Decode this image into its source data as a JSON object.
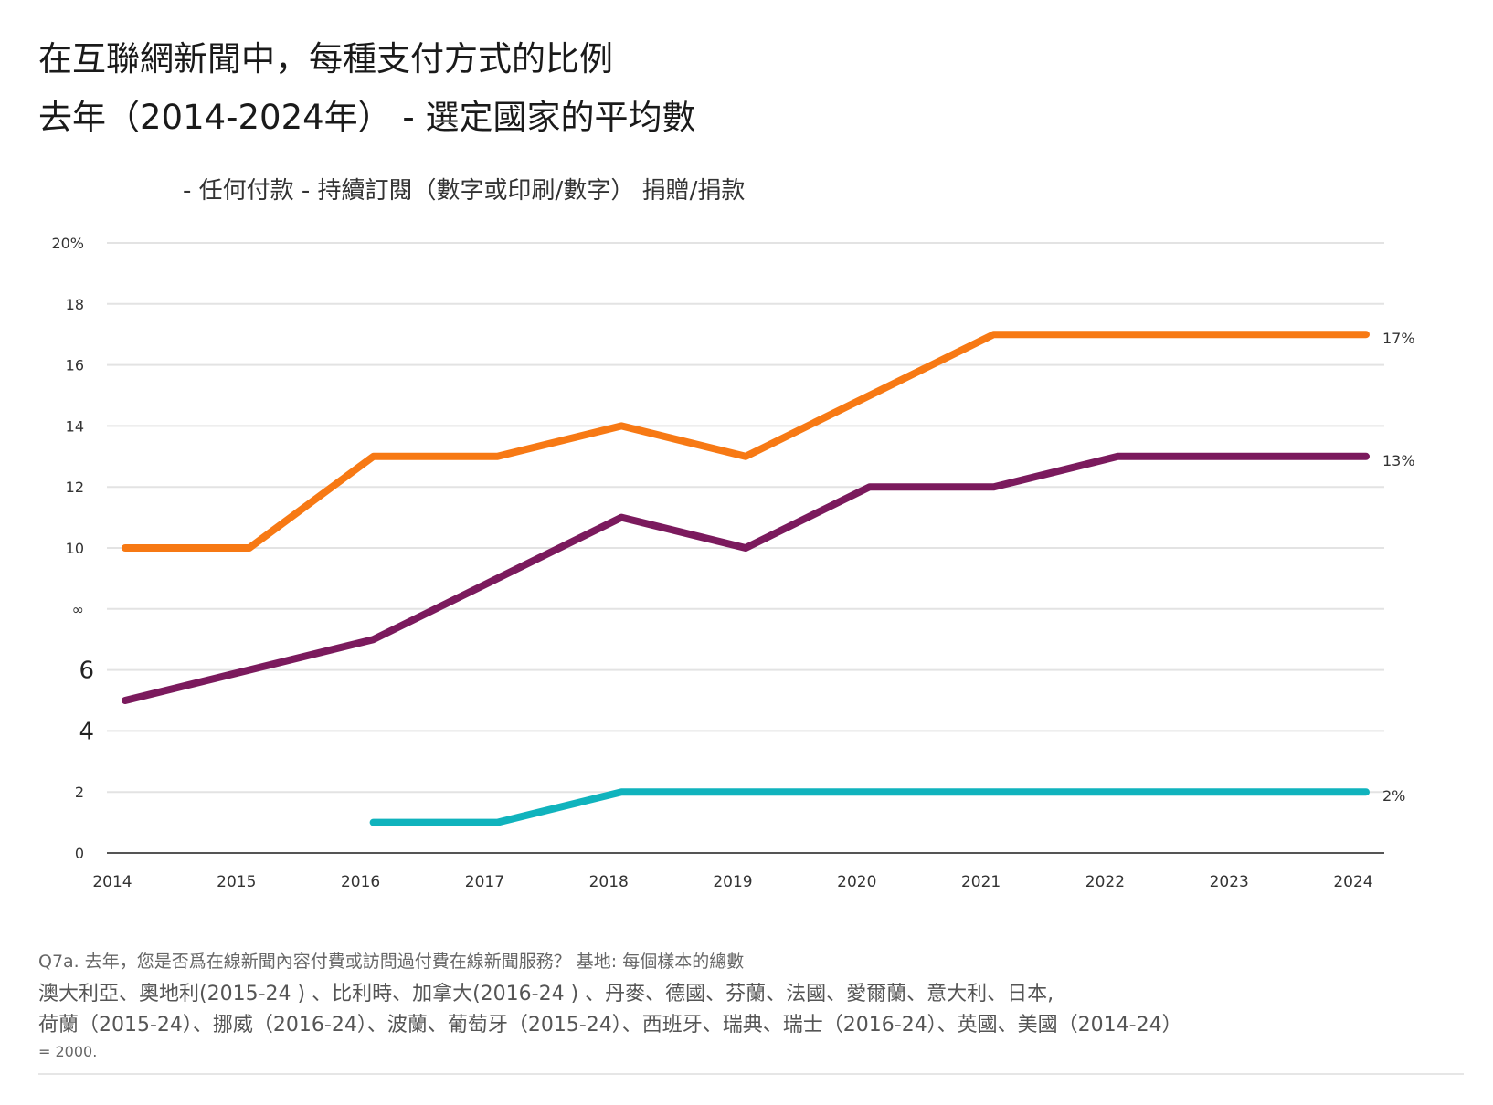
{
  "title": {
    "line1": "在互聯網新聞中，每種支付方式的比例",
    "line2": "去年（2014-2024年） - 選定國家的平均數"
  },
  "legend_text": "- 任何付款 - 持續訂閱（數字或印刷/數字） 捐贈/捐款",
  "colors": {
    "any_payment": "#f77914",
    "subscription": "#7b1a5d",
    "donation": "#10b3bd",
    "grid": "#e3e3e3",
    "axis": "#555555"
  },
  "chart_data": {
    "type": "line",
    "title": "在互聯網新聞中，每種支付方式的比例",
    "subtitle": "去年（2014-2024年） - 選定國家的平均數",
    "x": [
      "2014",
      "2015",
      "2016",
      "2017",
      "2018",
      "2019",
      "2020",
      "2021",
      "2022",
      "2023",
      "2024"
    ],
    "ylim": [
      0,
      20
    ],
    "grid": true,
    "y_ticks": [
      "0",
      "2",
      "4",
      "6",
      "∞",
      "10",
      "12",
      "14",
      "16",
      "18",
      "20%"
    ],
    "series": [
      {
        "name": "任何付款",
        "color": "#f77914",
        "values": [
          10,
          10,
          13,
          13,
          14,
          13,
          15,
          17,
          17,
          17,
          17
        ],
        "end_label": "17%"
      },
      {
        "name": "持續訂閱（數字或印刷/數字）",
        "color": "#7b1a5d",
        "values": [
          5,
          6,
          7,
          9,
          11,
          10,
          12,
          12,
          13,
          13,
          13
        ],
        "end_label": "13%"
      },
      {
        "name": "捐贈/捐款",
        "color": "#10b3bd",
        "values": [
          null,
          null,
          1,
          1,
          2,
          2,
          2,
          2,
          2,
          2,
          2
        ],
        "end_label": "2%"
      }
    ]
  },
  "footnote": {
    "line1": "Q7a. 去年，您是否爲在線新聞內容付費或訪問過付費在線新聞服務？ 基地: 每個樣本的總數",
    "line2": "澳大利亞、奧地利(2015-24 ) 、比利時、加拿大(2016-24 ) 、丹麥、德國、芬蘭、法國、愛爾蘭、意大利、日本,",
    "line3": "荷蘭（2015-24）、挪威（2016-24）、波蘭、葡萄牙（2015-24）、西班牙、瑞典、瑞士（2016-24）、英國、美國（2014-24）",
    "line4": "= 2000."
  }
}
